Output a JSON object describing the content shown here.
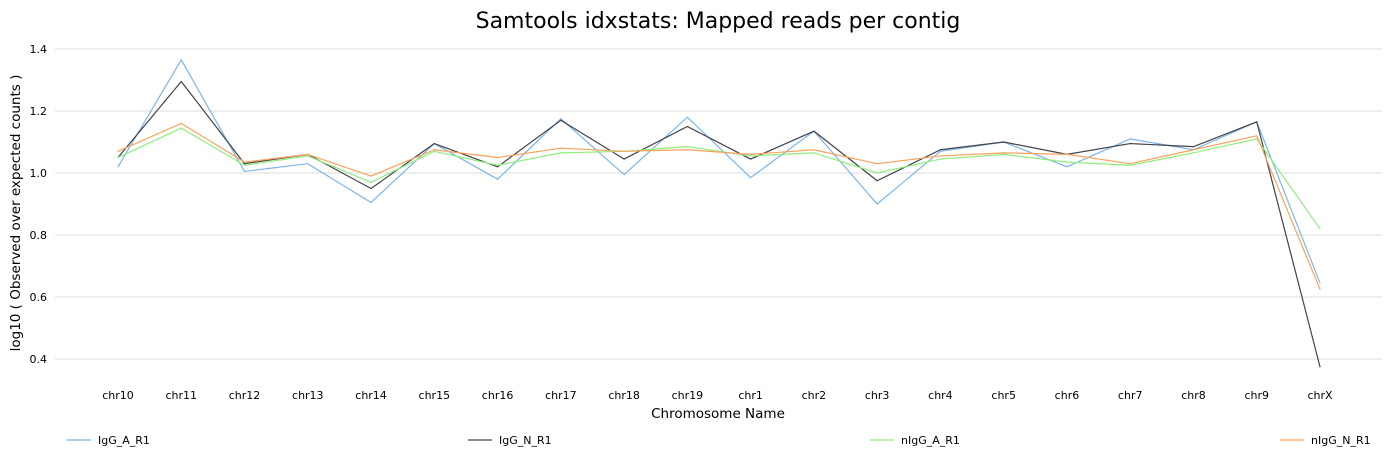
{
  "chart_data": {
    "type": "line",
    "title": "Samtools idxstats: Mapped reads per contig",
    "xlabel": "Chromosome Name",
    "ylabel": "log10 ( Observed over expected counts )",
    "ylim": [
      0.4,
      1.4
    ],
    "yticks": [
      "0.4",
      "0.6",
      "0.8",
      "1.0",
      "1.2",
      "1.4"
    ],
    "grid": true,
    "legend_position": "bottom",
    "categories": [
      "chr10",
      "chr11",
      "chr12",
      "chr13",
      "chr14",
      "chr15",
      "chr16",
      "chr17",
      "chr18",
      "chr19",
      "chr1",
      "chr2",
      "chr3",
      "chr4",
      "chr5",
      "chr6",
      "chr7",
      "chr8",
      "chr9",
      "chrX"
    ],
    "series": [
      {
        "name": "IgG_A_R1",
        "color": "#7cb5ec",
        "values": [
          1.02,
          1.365,
          1.005,
          1.03,
          0.905,
          1.095,
          0.98,
          1.175,
          0.995,
          1.18,
          0.985,
          1.135,
          0.9,
          1.07,
          1.1,
          1.02,
          1.11,
          1.075,
          1.165,
          0.645
        ]
      },
      {
        "name": "IgG_N_R1",
        "color": "#434348",
        "values": [
          1.05,
          1.295,
          1.03,
          1.06,
          0.95,
          1.095,
          1.02,
          1.17,
          1.045,
          1.15,
          1.045,
          1.135,
          0.975,
          1.075,
          1.1,
          1.06,
          1.095,
          1.085,
          1.165,
          0.375
        ]
      },
      {
        "name": "nIgG_A_R1",
        "color": "#90ed7d",
        "values": [
          1.05,
          1.145,
          1.025,
          1.055,
          0.97,
          1.07,
          1.025,
          1.065,
          1.07,
          1.085,
          1.055,
          1.065,
          1.0,
          1.045,
          1.06,
          1.035,
          1.025,
          1.065,
          1.11,
          0.82
        ]
      },
      {
        "name": "nIgG_N_R1",
        "color": "#f7a35c",
        "values": [
          1.07,
          1.16,
          1.035,
          1.06,
          0.99,
          1.075,
          1.05,
          1.08,
          1.07,
          1.075,
          1.06,
          1.075,
          1.03,
          1.055,
          1.065,
          1.06,
          1.03,
          1.075,
          1.12,
          0.625
        ]
      }
    ]
  }
}
